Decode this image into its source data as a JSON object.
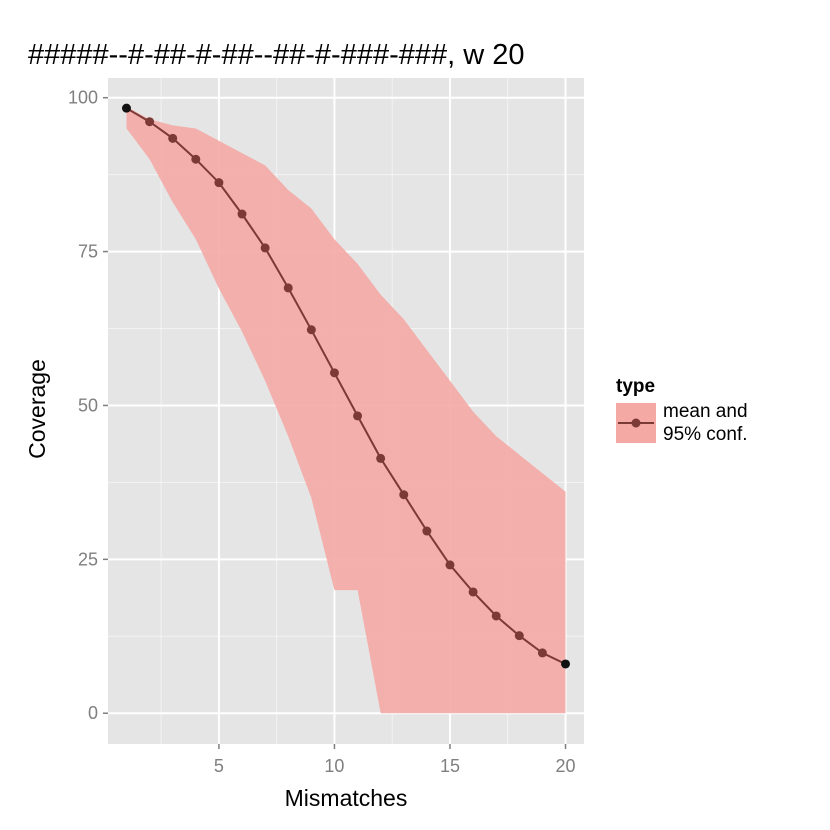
{
  "chart_data": {
    "type": "line",
    "title": "#####--#-##-#-##--##-#-###-###, w 20",
    "xlabel": "Mismatches",
    "ylabel": "Coverage",
    "xlim": [
      0.2,
      20.8
    ],
    "ylim": [
      -5,
      103.2
    ],
    "x_ticks": [
      5,
      10,
      15,
      20
    ],
    "y_ticks": [
      0,
      25,
      50,
      75,
      100
    ],
    "x_tick_labels": [
      "5",
      "10",
      "15",
      "20"
    ],
    "y_tick_labels": [
      "0",
      "25",
      "50",
      "75",
      "100"
    ],
    "grid": true,
    "legend": {
      "position": "right",
      "title": "type",
      "label_line1": "mean and",
      "label_line2": "95% conf."
    },
    "colors": {
      "panel": "#e5e5e5",
      "grid": "#ffffff",
      "ribbon": "#f4a9a5",
      "line": "#7b3a36",
      "endpoint": "#111111"
    },
    "series": [
      {
        "x": [
          1,
          2,
          3,
          4,
          5,
          6,
          7,
          8,
          9,
          10,
          11,
          12,
          13,
          14,
          15,
          16,
          17,
          18,
          19,
          20
        ],
        "y": [
          98.3,
          96.1,
          93.4,
          90.0,
          86.2,
          81.1,
          75.6,
          69.1,
          62.3,
          55.3,
          48.3,
          41.4,
          35.5,
          29.6,
          24.1,
          19.7,
          15.8,
          12.6,
          9.8,
          8.0
        ]
      }
    ],
    "ribbon": {
      "x": [
        1,
        2,
        3,
        4,
        5,
        6,
        7,
        8,
        9,
        10,
        11,
        12,
        12.5,
        13,
        14,
        15,
        16,
        17,
        18,
        19,
        20
      ],
      "lower": [
        95,
        90,
        83,
        77,
        69,
        62,
        54,
        45,
        35,
        20,
        20,
        0,
        0,
        0,
        0,
        0,
        0,
        0,
        0,
        0,
        0
      ],
      "upper": [
        98.5,
        96.5,
        95.5,
        95,
        93,
        91,
        89,
        85,
        82,
        77,
        73,
        68,
        66,
        64,
        59,
        54,
        49,
        45,
        42,
        39,
        36
      ]
    }
  }
}
